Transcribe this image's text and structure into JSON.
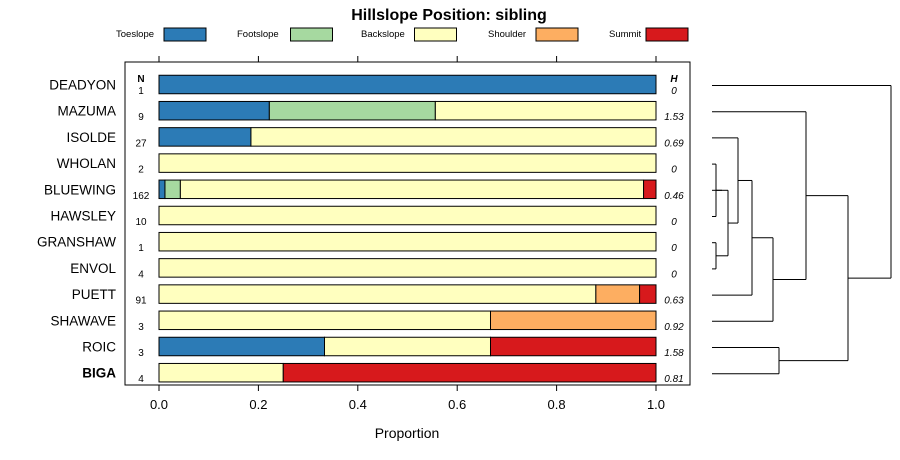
{
  "chart_data": {
    "type": "bar",
    "orientation": "horizontal",
    "stacked": true,
    "title": "Hillslope Position: sibling",
    "xlabel": "Proportion",
    "xlim": [
      0,
      1
    ],
    "x_ticks": [
      "0.0",
      "0.2",
      "0.4",
      "0.6",
      "0.8",
      "1.0"
    ],
    "x_tick_values": [
      0,
      0.2,
      0.4,
      0.6,
      0.8,
      1.0
    ],
    "n_header": "N",
    "h_header": "H",
    "legend_position": "top",
    "series": [
      {
        "name": "Toeslope",
        "color": "#2C7BB6"
      },
      {
        "name": "Footslope",
        "color": "#A6D9A0"
      },
      {
        "name": "Backslope",
        "color": "#FFFFBF"
      },
      {
        "name": "Shoulder",
        "color": "#FDAE61"
      },
      {
        "name": "Summit",
        "color": "#D7191C"
      }
    ],
    "rows": [
      {
        "label": "DEADYON",
        "n": "1",
        "h": "0",
        "bold": false,
        "values": [
          1.0,
          0,
          0,
          0,
          0
        ]
      },
      {
        "label": "MAZUMA",
        "n": "9",
        "h": "1.53",
        "bold": false,
        "values": [
          0.222,
          0.334,
          0.444,
          0,
          0
        ]
      },
      {
        "label": "ISOLDE",
        "n": "27",
        "h": "0.69",
        "bold": false,
        "values": [
          0.185,
          0,
          0.815,
          0,
          0
        ]
      },
      {
        "label": "WHOLAN",
        "n": "2",
        "h": "0",
        "bold": false,
        "values": [
          0,
          0,
          1.0,
          0,
          0
        ]
      },
      {
        "label": "BLUEWING",
        "n": "162",
        "h": "0.46",
        "bold": false,
        "values": [
          0.012,
          0.031,
          0.932,
          0,
          0.025
        ]
      },
      {
        "label": "HAWSLEY",
        "n": "10",
        "h": "0",
        "bold": false,
        "values": [
          0,
          0,
          1.0,
          0,
          0
        ]
      },
      {
        "label": "GRANSHAW",
        "n": "1",
        "h": "0",
        "bold": false,
        "values": [
          0,
          0,
          1.0,
          0,
          0
        ]
      },
      {
        "label": "ENVOL",
        "n": "4",
        "h": "0",
        "bold": false,
        "values": [
          0,
          0,
          1.0,
          0,
          0
        ]
      },
      {
        "label": "PUETT",
        "n": "91",
        "h": "0.63",
        "bold": false,
        "values": [
          0,
          0,
          0.879,
          0.088,
          0.033
        ]
      },
      {
        "label": "SHAWAVE",
        "n": "3",
        "h": "0.92",
        "bold": false,
        "values": [
          0,
          0,
          0.667,
          0.333,
          0
        ]
      },
      {
        "label": "ROIC",
        "n": "3",
        "h": "1.58",
        "bold": false,
        "values": [
          0.333,
          0,
          0.334,
          0,
          0.333
        ]
      },
      {
        "label": "BIGA",
        "n": "4",
        "h": "0.81",
        "bold": true,
        "values": [
          0,
          0,
          0.25,
          0,
          0.75
        ]
      }
    ]
  }
}
